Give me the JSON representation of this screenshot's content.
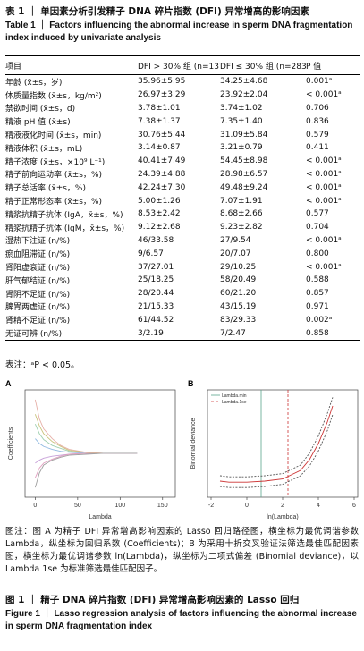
{
  "table_caption": {
    "zh": "表 1 ｜ 单因素分析引发精子 DNA 碎片指数 (DFI) 异常增高的影响因素",
    "en": "Table 1 ｜ Factors influencing the abnormal increase in sperm DNA fragmentation index induced by univariate analysis"
  },
  "table": {
    "header": [
      "项目",
      "DFI > 30% 组 (n=137)",
      "DFI ≤ 30% 组 (n=283)",
      "P 值"
    ],
    "rows": [
      [
        "年龄 (x̄±s，岁)",
        "35.96±5.95",
        "34.25±4.68",
        "0.001ᵃ"
      ],
      [
        "体质量指数 (x̄±s，kg/m²)",
        "26.97±3.29",
        "23.92±2.04",
        "< 0.001ᵃ"
      ],
      [
        "禁欲时间 (x̄±s，d)",
        "3.78±1.01",
        "3.74±1.02",
        "0.706"
      ],
      [
        "精液 pH 值 (x̄±s)",
        "7.38±1.37",
        "7.35±1.40",
        "0.836"
      ],
      [
        "精液液化时间 (x̄±s，min)",
        "30.76±5.44",
        "31.09±5.84",
        "0.579"
      ],
      [
        "精液体积 (x̄±s，mL)",
        "3.14±0.87",
        "3.21±0.79",
        "0.411"
      ],
      [
        "精子浓度 (x̄±s，×10⁹ L⁻¹)",
        "40.41±7.49",
        "54.45±8.98",
        "< 0.001ᵃ"
      ],
      [
        "精子前向运动率 (x̄±s，%)",
        "24.39±4.88",
        "28.98±6.57",
        "< 0.001ᵃ"
      ],
      [
        "精子总活率 (x̄±s，%)",
        "42.24±7.30",
        "49.48±9.24",
        "< 0.001ᵃ"
      ],
      [
        "精子正常形态率 (x̄±s，%)",
        "5.00±1.26",
        "7.07±1.91",
        "< 0.001ᵃ"
      ],
      [
        "精浆抗精子抗体 (IgA，x̄±s，%)",
        "8.53±2.42",
        "8.68±2.66",
        "0.577"
      ],
      [
        "精浆抗精子抗体 (IgM，x̄±s，%)",
        "9.12±2.68",
        "9.23±2.82",
        "0.704"
      ],
      [
        "湿热下注证 (n/%)",
        "46/33.58",
        "27/9.54",
        "< 0.001ᵃ"
      ],
      [
        "瘀血阻滞证 (n/%)",
        "9/6.57",
        "20/7.07",
        "0.800"
      ],
      [
        "肾阳虚衰证 (n/%)",
        "37/27.01",
        "29/10.25",
        "< 0.001ᵃ"
      ],
      [
        "肝气郁结证 (n/%)",
        "25/18.25",
        "58/20.49",
        "0.588"
      ],
      [
        "肾阴不足证 (n/%)",
        "28/20.44",
        "60/21.20",
        "0.857"
      ],
      [
        "脾胃两虚证 (n/%)",
        "21/15.33",
        "43/15.19",
        "0.971"
      ],
      [
        "肾精不足证 (n/%)",
        "61/44.52",
        "83/29.33",
        "0.002ᵃ"
      ],
      [
        "无证可辨 (n/%)",
        "3/2.19",
        "7/2.47",
        "0.858"
      ]
    ],
    "note": "表注：ᵃP < 0.05。"
  },
  "figure": {
    "panels": [
      {
        "label": "A",
        "type": "line",
        "x_label": "Lambda",
        "y_label": "Coefficients",
        "xlim": [
          -12,
          165
        ],
        "ylim": [
          -0.45,
          0.65
        ],
        "xticks": [
          0,
          50,
          100,
          150
        ],
        "x": [
          0,
          5,
          10,
          20,
          30,
          40,
          60,
          80,
          100,
          120
        ],
        "series": [
          {
            "color": "#e6b0a8",
            "values": [
              0.55,
              0.35,
              0.25,
              0.15,
              0.08,
              0.04,
              0.01,
              0,
              0,
              0
            ]
          },
          {
            "color": "#c9c27a",
            "values": [
              0.4,
              0.28,
              0.2,
              0.12,
              0.07,
              0.03,
              0.01,
              0,
              0,
              0
            ]
          },
          {
            "color": "#9fd0b0",
            "values": [
              0.3,
              0.2,
              0.14,
              0.08,
              0.05,
              0.02,
              0,
              0,
              0,
              0
            ]
          },
          {
            "color": "#8fb8e0",
            "values": [
              0.15,
              0.1,
              0.07,
              0.04,
              0.02,
              0.01,
              0,
              0,
              0,
              0
            ]
          },
          {
            "color": "#c7a0d8",
            "values": [
              -0.1,
              -0.07,
              -0.05,
              -0.03,
              -0.02,
              -0.01,
              0,
              0,
              0,
              0
            ]
          },
          {
            "color": "#e0a0c0",
            "values": [
              -0.25,
              -0.15,
              -0.1,
              -0.06,
              -0.03,
              -0.01,
              0,
              0,
              0,
              0
            ]
          },
          {
            "color": "#a0a0a0",
            "values": [
              -0.35,
              -0.2,
              -0.12,
              -0.07,
              -0.04,
              -0.02,
              -0.01,
              0,
              0,
              0
            ]
          }
        ]
      },
      {
        "label": "B",
        "type": "line",
        "x_label": "ln(Lambda)",
        "y_label": "Binomial deviance",
        "xlim": [
          -2.2,
          6.2
        ],
        "ylim": [
          0.3,
          1.3
        ],
        "xticks": [
          -2,
          0,
          2,
          4,
          6
        ],
        "x": [
          -1.5,
          -1,
          0,
          1,
          2,
          3,
          3.5,
          4,
          4.5,
          4.8
        ],
        "series": [
          {
            "color": "#c33",
            "values": [
              0.45,
              0.44,
              0.44,
              0.45,
              0.47,
              0.55,
              0.65,
              0.8,
              1.0,
              1.15
            ]
          },
          {
            "color": "#555",
            "dashed": true,
            "values": [
              0.5,
              0.49,
              0.49,
              0.5,
              0.52,
              0.6,
              0.71,
              0.87,
              1.08,
              1.23
            ]
          },
          {
            "color": "#555",
            "dashed": true,
            "values": [
              0.4,
              0.39,
              0.39,
              0.4,
              0.42,
              0.5,
              0.59,
              0.73,
              0.92,
              1.07
            ]
          }
        ],
        "vlines": [
          {
            "name": "Lambda.min",
            "color": "#5aa58c",
            "value": 0.8
          },
          {
            "name": "Lambda.1se",
            "color": "#c33",
            "value": 2.3,
            "dashed": true
          }
        ]
      }
    ],
    "note": "图注：图 A 为精子 DFI 异常增高影响因素的 Lasso 回归路径图，横坐标为最优调谐参数 Lambda，纵坐标为回归系数 (Coefficients)；B 为采用十折交叉验证法筛选最佳匹配因素图，横坐标为最优调谐参数 ln(Lambda)，纵坐标为二项式偏差 (Binomial deviance)，以 Lambda 1se 为标准筛选最佳匹配因子。",
    "caption_zh": "图 1 ｜ 精子 DNA 碎片指数 (DFI) 异常增高影响因素的 Lasso 回归",
    "caption_en": "Figure 1 ｜ Lasso regression analysis of factors influencing the abnormal increase in sperm DNA fragmentation index"
  }
}
